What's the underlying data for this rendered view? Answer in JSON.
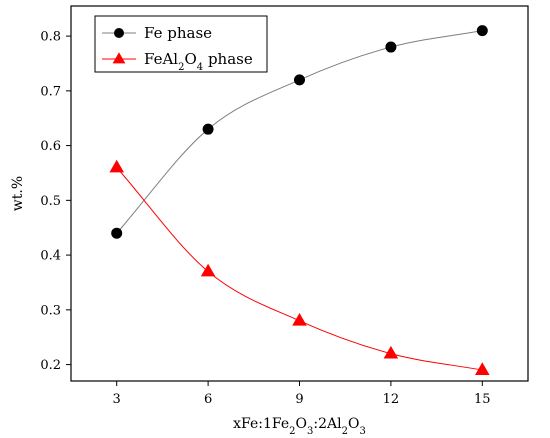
{
  "chart_data": {
    "type": "line",
    "title": "",
    "xlabel": {
      "parts": [
        {
          "t": "xFe:1Fe",
          "s": "normal"
        },
        {
          "t": "2",
          "s": "sub"
        },
        {
          "t": "O",
          "s": "normal"
        },
        {
          "t": "3",
          "s": "sub"
        },
        {
          "t": ":2Al",
          "s": "normal"
        },
        {
          "t": "2",
          "s": "sub"
        },
        {
          "t": "O",
          "s": "normal"
        },
        {
          "t": "3",
          "s": "sub"
        }
      ]
    },
    "ylabel": "wt.%",
    "x": [
      3,
      6,
      9,
      12,
      15
    ],
    "xlim": [
      1.5,
      16.5
    ],
    "ylim": [
      0.17,
      0.855
    ],
    "xticks": [
      3,
      6,
      9,
      12,
      15
    ],
    "yticks": [
      0.2,
      0.3,
      0.4,
      0.5,
      0.6,
      0.7,
      0.8
    ],
    "ytick_labels": [
      "0.2",
      "0.3",
      "0.4",
      "0.5",
      "0.6",
      "0.7",
      "0.8"
    ],
    "grid": false,
    "legend_position": "top-left",
    "series": [
      {
        "name": "Fe phase",
        "name_parts": [
          {
            "t": "Fe phase",
            "s": "normal"
          }
        ],
        "values": [
          0.44,
          0.63,
          0.72,
          0.78,
          0.81
        ],
        "marker": "circle",
        "marker_color": "#000000",
        "line_color": "#7f7f7f"
      },
      {
        "name": "FeAl2O4 phase",
        "name_parts": [
          {
            "t": "FeAl",
            "s": "normal"
          },
          {
            "t": "2",
            "s": "sub"
          },
          {
            "t": "O",
            "s": "normal"
          },
          {
            "t": "4",
            "s": "sub"
          },
          {
            "t": " phase",
            "s": "normal"
          }
        ],
        "values": [
          0.56,
          0.37,
          0.28,
          0.22,
          0.19
        ],
        "marker": "triangle",
        "marker_color": "#ff0000",
        "line_color": "#ff0000"
      }
    ]
  }
}
